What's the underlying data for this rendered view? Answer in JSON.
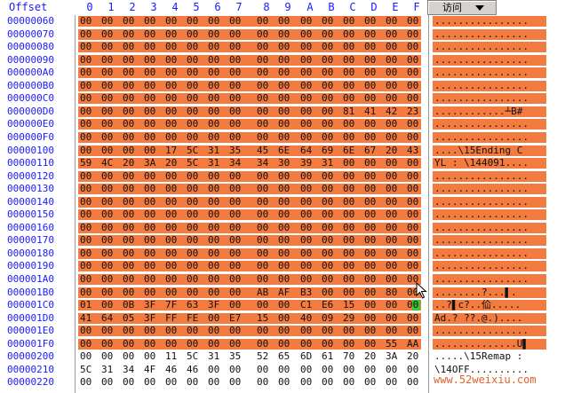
{
  "header": {
    "offset_label": "Offset",
    "columns": [
      "0",
      "1",
      "2",
      "3",
      "4",
      "5",
      "6",
      "7",
      "8",
      "9",
      "A",
      "B",
      "C",
      "D",
      "E",
      "F"
    ],
    "mode_button_label": "访问"
  },
  "colors": {
    "band": "#f37b3f",
    "offset_text": "#1a1aff",
    "cursor": "#37c837"
  },
  "rows": [
    {
      "offset": "00000060",
      "bytes": [
        "00",
        "00",
        "00",
        "00",
        "00",
        "00",
        "00",
        "00",
        "00",
        "00",
        "00",
        "00",
        "00",
        "00",
        "00",
        "00"
      ],
      "ascii": "................",
      "highlight": true
    },
    {
      "offset": "00000070",
      "bytes": [
        "00",
        "00",
        "00",
        "00",
        "00",
        "00",
        "00",
        "00",
        "00",
        "00",
        "00",
        "00",
        "00",
        "00",
        "00",
        "00"
      ],
      "ascii": "................",
      "highlight": true
    },
    {
      "offset": "00000080",
      "bytes": [
        "00",
        "00",
        "00",
        "00",
        "00",
        "00",
        "00",
        "00",
        "00",
        "00",
        "00",
        "00",
        "00",
        "00",
        "00",
        "00"
      ],
      "ascii": "................",
      "highlight": true
    },
    {
      "offset": "00000090",
      "bytes": [
        "00",
        "00",
        "00",
        "00",
        "00",
        "00",
        "00",
        "00",
        "00",
        "00",
        "00",
        "00",
        "00",
        "00",
        "00",
        "00"
      ],
      "ascii": "................",
      "highlight": true
    },
    {
      "offset": "000000A0",
      "bytes": [
        "00",
        "00",
        "00",
        "00",
        "00",
        "00",
        "00",
        "00",
        "00",
        "00",
        "00",
        "00",
        "00",
        "00",
        "00",
        "00"
      ],
      "ascii": "................",
      "highlight": true
    },
    {
      "offset": "000000B0",
      "bytes": [
        "00",
        "00",
        "00",
        "00",
        "00",
        "00",
        "00",
        "00",
        "00",
        "00",
        "00",
        "00",
        "00",
        "00",
        "00",
        "00"
      ],
      "ascii": "................",
      "highlight": true
    },
    {
      "offset": "000000C0",
      "bytes": [
        "00",
        "00",
        "00",
        "00",
        "00",
        "00",
        "00",
        "00",
        "00",
        "00",
        "00",
        "00",
        "00",
        "00",
        "00",
        "00"
      ],
      "ascii": "................",
      "highlight": true
    },
    {
      "offset": "000000D0",
      "bytes": [
        "00",
        "00",
        "00",
        "00",
        "00",
        "00",
        "00",
        "00",
        "00",
        "00",
        "00",
        "00",
        "81",
        "41",
        "42",
        "23"
      ],
      "ascii": "............┴B#",
      "highlight": true
    },
    {
      "offset": "000000E0",
      "bytes": [
        "00",
        "00",
        "00",
        "00",
        "00",
        "00",
        "00",
        "00",
        "00",
        "00",
        "00",
        "00",
        "00",
        "00",
        "00",
        "00"
      ],
      "ascii": "................",
      "highlight": true
    },
    {
      "offset": "000000F0",
      "bytes": [
        "00",
        "00",
        "00",
        "00",
        "00",
        "00",
        "00",
        "00",
        "00",
        "00",
        "00",
        "00",
        "00",
        "00",
        "00",
        "00"
      ],
      "ascii": "................",
      "highlight": true
    },
    {
      "offset": "00000100",
      "bytes": [
        "00",
        "00",
        "00",
        "00",
        "17",
        "5C",
        "31",
        "35",
        "45",
        "6E",
        "64",
        "69",
        "6E",
        "67",
        "20",
        "43"
      ],
      "ascii": "....\\15Ending C",
      "highlight": true
    },
    {
      "offset": "00000110",
      "bytes": [
        "59",
        "4C",
        "20",
        "3A",
        "20",
        "5C",
        "31",
        "34",
        "34",
        "30",
        "39",
        "31",
        "00",
        "00",
        "00",
        "00"
      ],
      "ascii": "YL : \\144091....",
      "highlight": true
    },
    {
      "offset": "00000120",
      "bytes": [
        "00",
        "00",
        "00",
        "00",
        "00",
        "00",
        "00",
        "00",
        "00",
        "00",
        "00",
        "00",
        "00",
        "00",
        "00",
        "00"
      ],
      "ascii": "................",
      "highlight": true
    },
    {
      "offset": "00000130",
      "bytes": [
        "00",
        "00",
        "00",
        "00",
        "00",
        "00",
        "00",
        "00",
        "00",
        "00",
        "00",
        "00",
        "00",
        "00",
        "00",
        "00"
      ],
      "ascii": "................",
      "highlight": true
    },
    {
      "offset": "00000140",
      "bytes": [
        "00",
        "00",
        "00",
        "00",
        "00",
        "00",
        "00",
        "00",
        "00",
        "00",
        "00",
        "00",
        "00",
        "00",
        "00",
        "00"
      ],
      "ascii": "................",
      "highlight": true
    },
    {
      "offset": "00000150",
      "bytes": [
        "00",
        "00",
        "00",
        "00",
        "00",
        "00",
        "00",
        "00",
        "00",
        "00",
        "00",
        "00",
        "00",
        "00",
        "00",
        "00"
      ],
      "ascii": "................",
      "highlight": true
    },
    {
      "offset": "00000160",
      "bytes": [
        "00",
        "00",
        "00",
        "00",
        "00",
        "00",
        "00",
        "00",
        "00",
        "00",
        "00",
        "00",
        "00",
        "00",
        "00",
        "00"
      ],
      "ascii": "................",
      "highlight": true
    },
    {
      "offset": "00000170",
      "bytes": [
        "00",
        "00",
        "00",
        "00",
        "00",
        "00",
        "00",
        "00",
        "00",
        "00",
        "00",
        "00",
        "00",
        "00",
        "00",
        "00"
      ],
      "ascii": "................",
      "highlight": true
    },
    {
      "offset": "00000180",
      "bytes": [
        "00",
        "00",
        "00",
        "00",
        "00",
        "00",
        "00",
        "00",
        "00",
        "00",
        "00",
        "00",
        "00",
        "00",
        "00",
        "00"
      ],
      "ascii": "................",
      "highlight": true
    },
    {
      "offset": "00000190",
      "bytes": [
        "00",
        "00",
        "00",
        "00",
        "00",
        "00",
        "00",
        "00",
        "00",
        "00",
        "00",
        "00",
        "00",
        "00",
        "00",
        "00"
      ],
      "ascii": "................",
      "highlight": true
    },
    {
      "offset": "000001A0",
      "bytes": [
        "00",
        "00",
        "00",
        "00",
        "00",
        "00",
        "00",
        "00",
        "00",
        "00",
        "00",
        "00",
        "00",
        "00",
        "00",
        "00"
      ],
      "ascii": "................",
      "highlight": true
    },
    {
      "offset": "000001B0",
      "bytes": [
        "00",
        "00",
        "00",
        "00",
        "00",
        "00",
        "00",
        "00",
        "AB",
        "AF",
        "B3",
        "00",
        "00",
        "00",
        "80",
        "00"
      ],
      "ascii": "........?...▌.",
      "highlight": true
    },
    {
      "offset": "000001C0",
      "bytes": [
        "01",
        "00",
        "0B",
        "3F",
        "7F",
        "63",
        "3F",
        "00",
        "00",
        "00",
        "C1",
        "E6",
        "15",
        "00",
        "00",
        "00"
      ],
      "ascii": "..?▌c?..佡.....",
      "highlight": true
    },
    {
      "offset": "000001D0",
      "bytes": [
        "41",
        "64",
        "05",
        "3F",
        "FF",
        "FE",
        "00",
        "E7",
        "15",
        "00",
        "40",
        "09",
        "29",
        "00",
        "00",
        "00"
      ],
      "ascii": "Ad.? ??.@.)....",
      "highlight": true
    },
    {
      "offset": "000001E0",
      "bytes": [
        "00",
        "00",
        "00",
        "00",
        "00",
        "00",
        "00",
        "00",
        "00",
        "00",
        "00",
        "00",
        "00",
        "00",
        "00",
        "00"
      ],
      "ascii": "................",
      "highlight": true
    },
    {
      "offset": "000001F0",
      "bytes": [
        "00",
        "00",
        "00",
        "00",
        "00",
        "00",
        "00",
        "00",
        "00",
        "00",
        "00",
        "00",
        "00",
        "00",
        "55",
        "AA"
      ],
      "ascii": "..............U▌",
      "highlight": true
    },
    {
      "offset": "00000200",
      "bytes": [
        "00",
        "00",
        "00",
        "00",
        "11",
        "5C",
        "31",
        "35",
        "52",
        "65",
        "6D",
        "61",
        "70",
        "20",
        "3A",
        "20"
      ],
      "ascii": ".....\\15Remap :",
      "highlight": false
    },
    {
      "offset": "00000210",
      "bytes": [
        "5C",
        "31",
        "34",
        "4F",
        "46",
        "46",
        "00",
        "00",
        "00",
        "00",
        "00",
        "00",
        "00",
        "00",
        "00",
        "00"
      ],
      "ascii": "\\14OFF..........",
      "highlight": false
    },
    {
      "offset": "00000220",
      "bytes": [
        "00",
        "00",
        "00",
        "00",
        "00",
        "00",
        "00",
        "00",
        "00",
        "00",
        "00",
        "00",
        "00",
        "00",
        "00",
        "00"
      ],
      "ascii": "",
      "highlight": false
    }
  ],
  "watermark": "www.52weixiu.com"
}
